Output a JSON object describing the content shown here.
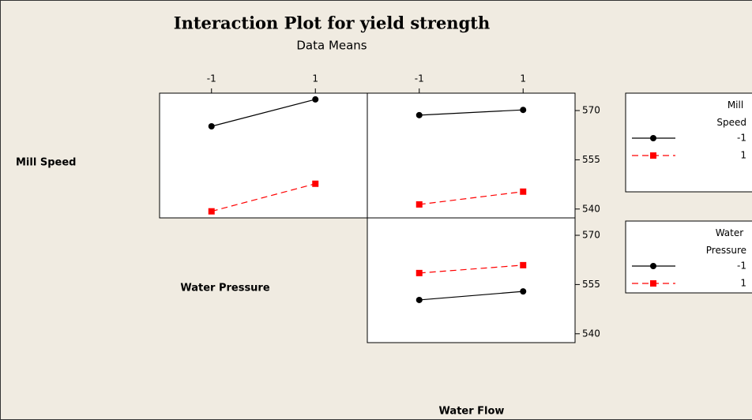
{
  "chart_data": {
    "type": "interaction",
    "title": "Interaction Plot for yield strength",
    "subtitle": "Data Means",
    "factors": [
      "Mill Speed",
      "Water Pressure",
      "Water Flow"
    ],
    "xlim": [
      -2,
      2
    ],
    "xticks": [
      -1,
      1
    ],
    "ylim": [
      537.3,
      575.3
    ],
    "yticks": [
      540,
      555,
      570
    ],
    "legends": [
      {
        "title": "Mill Speed",
        "series": [
          {
            "name": "-1",
            "color": "#000000",
            "marker": "circle",
            "dash": false
          },
          {
            "name": "1",
            "color": "#ff0000",
            "marker": "square",
            "dash": true
          }
        ]
      },
      {
        "title": "Water Pressure",
        "series": [
          {
            "name": "-1",
            "color": "#000000",
            "marker": "circle",
            "dash": false
          },
          {
            "name": "1",
            "color": "#ff0000",
            "marker": "square",
            "dash": true
          }
        ]
      }
    ],
    "panels": [
      {
        "series": [
          {
            "values": [
              565.2,
              573.4
            ]
          },
          {
            "values": [
              539.3,
              547.7
            ]
          }
        ]
      },
      {
        "series": [
          {
            "values": [
              568.6,
              570.2
            ]
          },
          {
            "values": [
              541.4,
              545.3
            ]
          }
        ]
      },
      {
        "series": [
          {
            "values": [
              550.3,
              552.9
            ]
          },
          {
            "values": [
              558.5,
              560.9
            ]
          }
        ]
      }
    ]
  }
}
